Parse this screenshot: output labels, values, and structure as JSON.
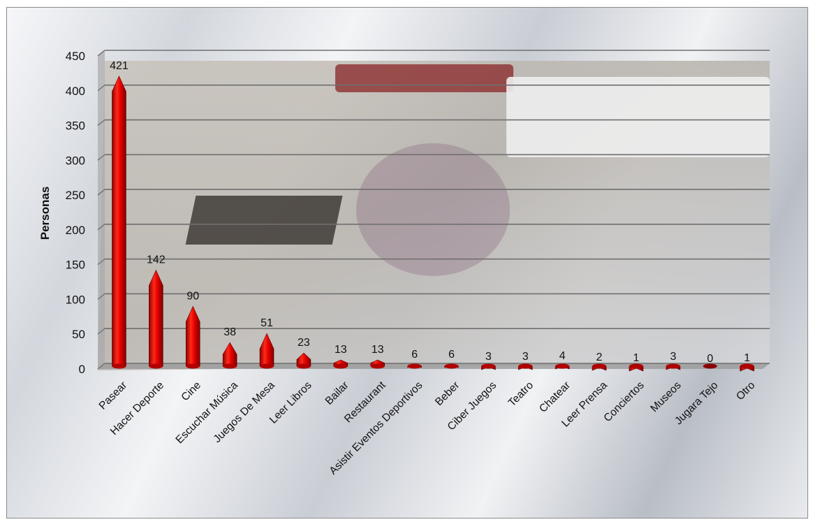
{
  "chart_data": {
    "type": "bar",
    "title": "",
    "xlabel": "",
    "ylabel": "Personas",
    "ylim": [
      0,
      450
    ],
    "yticks": [
      0,
      50,
      100,
      150,
      200,
      250,
      300,
      350,
      400,
      450
    ],
    "grid": true,
    "legend": "none",
    "bar_color": "#e00000",
    "bar_shape": "cone",
    "categories": [
      "Pasear",
      "Hacer Deporte",
      "Cine",
      "Escuchar Música",
      "Juegos De Mesa",
      "Leer Libros",
      "Bailar",
      "Restaurant",
      "Asistir Eventos Deportivos",
      "Beber",
      "Ciber Juegos",
      "Teatro",
      "Chatear",
      "Leer Prensa",
      "Conciertos",
      "Museos",
      "Jugara Tejo",
      "Otro"
    ],
    "values": [
      421,
      142,
      90,
      38,
      51,
      23,
      13,
      13,
      6,
      6,
      3,
      3,
      4,
      2,
      1,
      3,
      0,
      1
    ],
    "data_labels": [
      "421",
      "142",
      "90",
      "38",
      "51",
      "23",
      "13",
      "13",
      "6",
      "6",
      "3",
      "3",
      "4",
      "2",
      "1",
      "3",
      "0",
      "1"
    ]
  }
}
